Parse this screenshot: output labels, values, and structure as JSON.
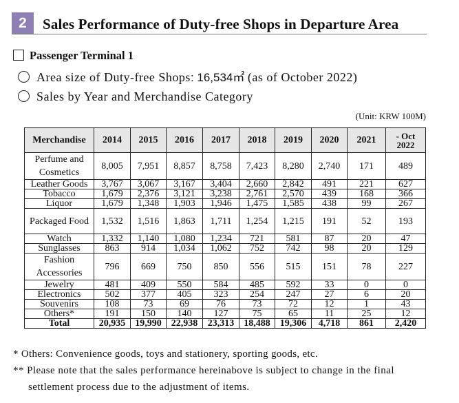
{
  "section": {
    "number": "2",
    "title": "Sales Performance of Duty-free Shops in Departure Area"
  },
  "subsection": {
    "title": "Passenger Terminal 1"
  },
  "bullets": {
    "area_prefix": "Area size of Duty-free Shops",
    "area_value": ": 16,534㎡",
    "area_suffix": "(as of October 2022)",
    "sales": "Sales by Year and Merchandise Category"
  },
  "unit": "(Unit: KRW 100M)",
  "table": {
    "headers": [
      "Merchandise",
      "2014",
      "2015",
      "2016",
      "2017",
      "2018",
      "2019",
      "2020",
      "2021"
    ],
    "last_header": {
      "line1": "- Oct",
      "line2": "2022"
    },
    "rows": [
      {
        "name": "Perfume and Cosmetics",
        "values": [
          "8,005",
          "7,951",
          "8,857",
          "8,758",
          "7,423",
          "8,280",
          "2,740",
          "171",
          "489"
        ]
      },
      {
        "name": "Leather Goods",
        "values": [
          "3,767",
          "3,067",
          "3,167",
          "3,404",
          "2,660",
          "2,842",
          "491",
          "221",
          "627"
        ]
      },
      {
        "name": "Tobacco",
        "values": [
          "1,679",
          "2,376",
          "3,121",
          "3,238",
          "2,761",
          "2,570",
          "439",
          "168",
          "366"
        ]
      },
      {
        "name": "Liquor",
        "values": [
          "1,679",
          "1,348",
          "1,903",
          "1,946",
          "1,475",
          "1,585",
          "438",
          "99",
          "267"
        ]
      },
      {
        "name": "Packaged Food",
        "values": [
          "1,532",
          "1,516",
          "1,863",
          "1,711",
          "1,254",
          "1,215",
          "191",
          "52",
          "193"
        ]
      },
      {
        "name": "Watch",
        "values": [
          "1,332",
          "1,140",
          "1,080",
          "1,234",
          "721",
          "581",
          "87",
          "20",
          "47"
        ]
      },
      {
        "name": "Sunglasses",
        "values": [
          "863",
          "914",
          "1,034",
          "1,062",
          "752",
          "742",
          "98",
          "20",
          "129"
        ]
      },
      {
        "name": "Fashion Accessories",
        "values": [
          "796",
          "669",
          "750",
          "850",
          "556",
          "515",
          "151",
          "78",
          "227"
        ]
      },
      {
        "name": "Jewelry",
        "values": [
          "481",
          "409",
          "550",
          "584",
          "485",
          "592",
          "33",
          "0",
          "0"
        ]
      },
      {
        "name": "Electronics",
        "values": [
          "502",
          "377",
          "405",
          "323",
          "254",
          "247",
          "27",
          "6",
          "20"
        ]
      },
      {
        "name": "Souvenirs",
        "values": [
          "108",
          "73",
          "69",
          "76",
          "73",
          "72",
          "12",
          "1",
          "43"
        ]
      },
      {
        "name": "Others*",
        "values": [
          "191",
          "150",
          "140",
          "127",
          "75",
          "65",
          "11",
          "25",
          "12"
        ]
      }
    ],
    "total": {
      "name": "Total",
      "values": [
        "20,935",
        "19,990",
        "22,938",
        "23,313",
        "18,488",
        "19,306",
        "4,718",
        "861",
        "2,420"
      ]
    }
  },
  "footnotes": {
    "f1": "* Others: Convenience goods, toys and stationery, sporting goods, etc.",
    "f2": "** Please note that the sales performance hereinabove is subject to change in the final",
    "f3": "settlement process due to the adjustment of items."
  }
}
